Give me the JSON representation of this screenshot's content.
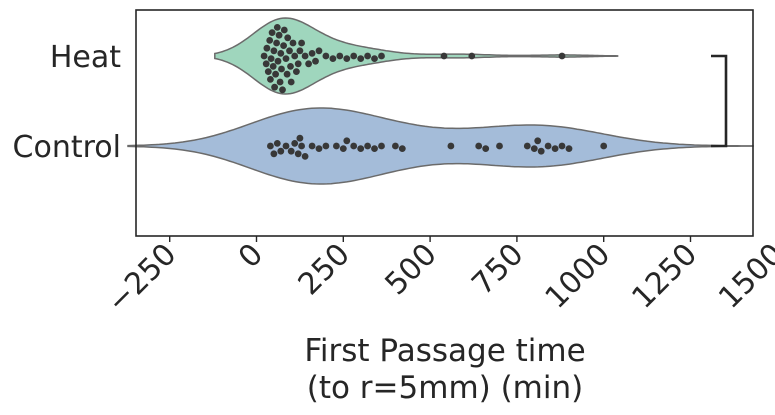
{
  "chart_data": {
    "type": "violin-swarm",
    "orientation": "horizontal",
    "categories": [
      "Heat",
      "Control"
    ],
    "xlabel_lines": [
      "First Passage time",
      "(to r=5mm) (min)"
    ],
    "ylabel": "",
    "xlim": [
      -400,
      1500
    ],
    "xticks": [
      -250,
      0,
      250,
      500,
      750,
      1000,
      1250,
      1500
    ],
    "xtick_labels": [
      "−250",
      "0",
      "250",
      "500",
      "750",
      "1000",
      "1250",
      "1500"
    ],
    "grid": false,
    "significance_bracket": {
      "between": [
        "Heat",
        "Control"
      ]
    },
    "series": [
      {
        "category": "Heat",
        "color": "#9fd6bd",
        "violin_extent": [
          -120,
          1040
        ],
        "points": [
          22,
          28,
          30,
          34,
          38,
          40,
          42,
          45,
          48,
          50,
          52,
          55,
          58,
          60,
          62,
          65,
          68,
          70,
          72,
          75,
          78,
          80,
          85,
          88,
          90,
          95,
          98,
          100,
          105,
          110,
          115,
          120,
          125,
          130,
          140,
          150,
          160,
          170,
          180,
          200,
          220,
          240,
          260,
          280,
          300,
          320,
          340,
          360,
          540,
          620,
          880
        ]
      },
      {
        "category": "Control",
        "color": "#a4bcd9",
        "violin_extent": [
          -370,
          1430
        ],
        "points": [
          40,
          50,
          60,
          70,
          85,
          100,
          110,
          120,
          125,
          130,
          140,
          160,
          180,
          200,
          230,
          250,
          260,
          280,
          300,
          320,
          340,
          360,
          400,
          420,
          560,
          640,
          660,
          700,
          780,
          800,
          810,
          820,
          840,
          860,
          880,
          900,
          1000
        ]
      }
    ]
  }
}
